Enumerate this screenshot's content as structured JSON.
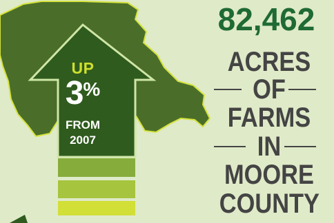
{
  "stat": {
    "value": "82,462",
    "lines": [
      "ACRES",
      "OF",
      "FARMS",
      "IN",
      "MOORE",
      "COUNTY"
    ]
  },
  "arrow": {
    "direction_word": "UP",
    "percent_value": "3",
    "percent_sign": "%",
    "from_word": "FROM",
    "year": "2007"
  },
  "colors": {
    "background": "#dfeac8",
    "map_fill": "#4a6e2a",
    "map_outline": "#d4e23a",
    "arrow_fill": "#2f5b1e",
    "accent_yellow": "#cfdf2e",
    "number_green": "#1f6a35",
    "text_gray": "#444444"
  }
}
